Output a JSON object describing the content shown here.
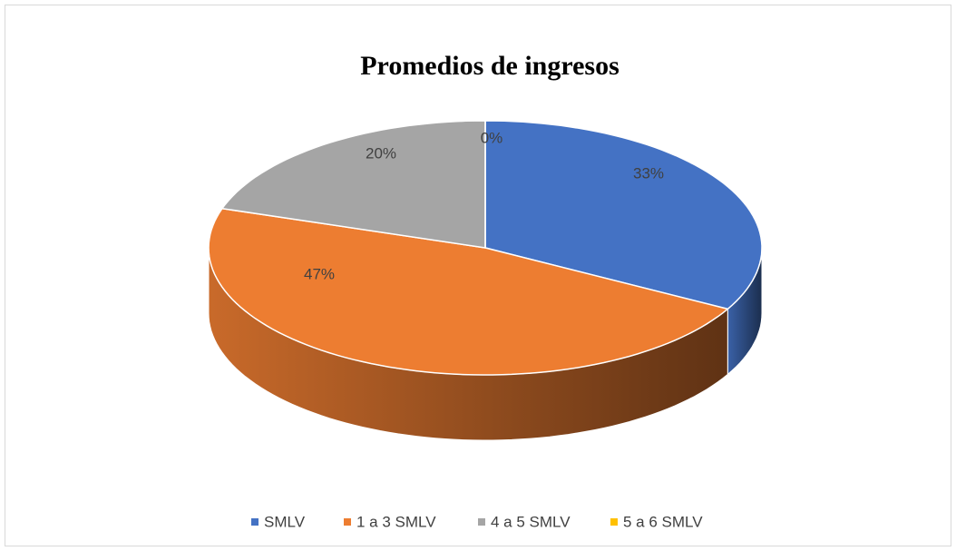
{
  "chart_data": {
    "type": "pie",
    "title": "Promedios  de ingresos",
    "categories": [
      "SMLV",
      "1 a 3 SMLV",
      "4 a 5 SMLV",
      "5 a 6 SMLV"
    ],
    "values": [
      33,
      47,
      20,
      0
    ],
    "value_labels": [
      "33%",
      "47%",
      "20%",
      "0%"
    ],
    "colors": [
      "#4472c4",
      "#ed7d31",
      "#a5a5a5",
      "#ffc000"
    ],
    "legend": "bottom"
  }
}
